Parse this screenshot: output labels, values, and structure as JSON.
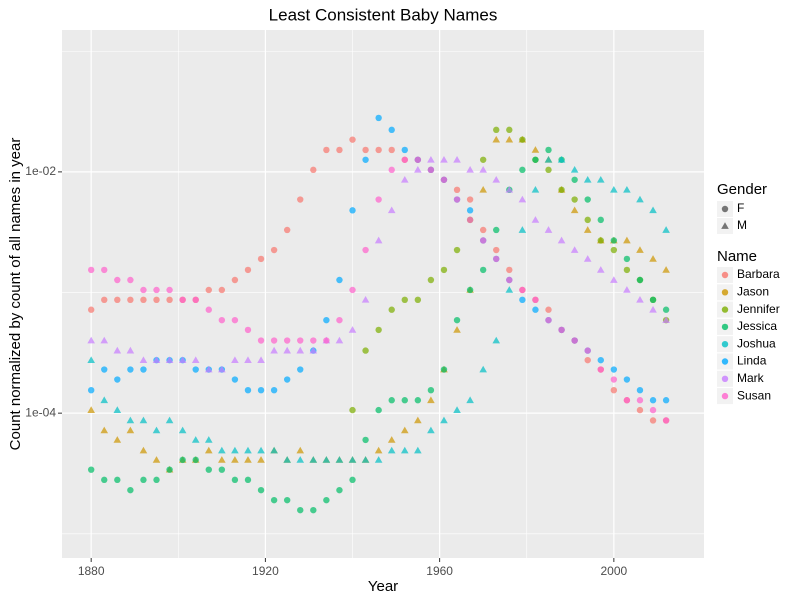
{
  "chart_data": {
    "type": "scatter",
    "title": "Least Consistent Baby Names",
    "x_label": "Year",
    "y_label": "Count normalized by count of all names in year",
    "log_y": true,
    "grid": true,
    "xlim": [
      1873.3,
      2020.7
    ],
    "ylim": [
      6.3e-06,
      0.15
    ],
    "xticks": [
      1880,
      1920,
      1960,
      2000
    ],
    "minor_xticks": [
      1900,
      1940,
      1980
    ],
    "yticks": [
      {
        "value": 0.0001,
        "label": "1e-04"
      },
      {
        "value": 0.01,
        "label": "1e-02"
      }
    ],
    "minor_yticks": [
      1e-05,
      0.001,
      0.1
    ],
    "gender_legend": {
      "title": "Gender",
      "items": [
        "F",
        "M"
      ]
    },
    "name_legend_title": "Name",
    "x": [
      1880,
      1883,
      1886,
      1889,
      1892,
      1895,
      1898,
      1901,
      1904,
      1907,
      1910,
      1913,
      1916,
      1919,
      1922,
      1925,
      1928,
      1931,
      1934,
      1937,
      1940,
      1943,
      1946,
      1949,
      1952,
      1955,
      1958,
      1961,
      1964,
      1967,
      1970,
      1973,
      1976,
      1979,
      1982,
      1985,
      1988,
      1991,
      1994,
      1997,
      2000,
      2003,
      2006,
      2009,
      2012
    ],
    "series": [
      {
        "name": "Barbara",
        "gender": "F",
        "color": "#F8766D",
        "values": [
          0.00072,
          0.00087,
          0.00087,
          0.00087,
          0.00087,
          0.00087,
          0.00087,
          0.00087,
          0.00087,
          0.00105,
          0.00105,
          0.00127,
          0.00154,
          0.0019,
          0.00225,
          0.0033,
          0.0059,
          0.0104,
          0.0152,
          0.0152,
          0.0185,
          0.0152,
          0.0152,
          0.0152,
          0.0126,
          0.0126,
          0.0104,
          0.0086,
          0.0071,
          0.0059,
          0.0033,
          0.00225,
          0.00154,
          0.00105,
          0.00087,
          0.00072,
          0.00049,
          0.0004,
          0.000275,
          0.00023,
          0.000155,
          0.000128,
          0.000106,
          8.7e-05,
          8.7e-05
        ]
      },
      {
        "name": "Jason",
        "gender": "M",
        "color": "#CD9600",
        "values": [
          0.000106,
          7.2e-05,
          6e-05,
          7.2e-05,
          4.9e-05,
          4.1e-05,
          3.4e-05,
          4.1e-05,
          4.1e-05,
          4.9e-05,
          4.1e-05,
          4.1e-05,
          4.1e-05,
          4.1e-05,
          4.9e-05,
          4.1e-05,
          4.9e-05,
          4.1e-05,
          4.1e-05,
          4.1e-05,
          4.1e-05,
          4.1e-05,
          4.9e-05,
          6e-05,
          7.2e-05,
          8.7e-05,
          0.000128,
          0.00023,
          0.00049,
          0.00105,
          0.0071,
          0.0185,
          0.0185,
          0.0185,
          0.0152,
          0.0126,
          0.0071,
          0.0048,
          0.0033,
          0.0027,
          0.0027,
          0.0027,
          0.00225,
          0.0019,
          0.00154
        ]
      },
      {
        "name": "Jennifer",
        "gender": "F",
        "color": "#7CAE00",
        "values": [
          null,
          null,
          null,
          null,
          null,
          null,
          null,
          null,
          null,
          null,
          null,
          null,
          null,
          null,
          null,
          null,
          null,
          null,
          null,
          null,
          0.000106,
          0.00033,
          0.00049,
          0.00072,
          0.00087,
          0.00087,
          0.00127,
          0.00154,
          0.00225,
          0.004,
          0.0126,
          0.0223,
          0.0223,
          0.0185,
          0.0126,
          0.0104,
          0.0071,
          0.0059,
          0.004,
          0.0027,
          0.00225,
          0.00154,
          0.00127,
          0.00087,
          0.00059
        ]
      },
      {
        "name": "Jessica",
        "gender": "F",
        "color": "#00BE67",
        "values": [
          3.4e-05,
          2.8e-05,
          2.8e-05,
          2.3e-05,
          2.8e-05,
          2.8e-05,
          3.4e-05,
          4.1e-05,
          4.1e-05,
          3.4e-05,
          3.4e-05,
          2.8e-05,
          2.8e-05,
          2.3e-05,
          1.9e-05,
          1.9e-05,
          1.57e-05,
          1.57e-05,
          1.9e-05,
          2.3e-05,
          2.8e-05,
          6e-05,
          0.000106,
          0.000128,
          0.000128,
          0.000128,
          0.000155,
          0.00023,
          0.00059,
          0.00105,
          0.00154,
          0.0033,
          0.0071,
          0.0104,
          0.0126,
          0.0152,
          0.0126,
          0.0086,
          0.0059,
          0.004,
          0.0027,
          0.0019,
          0.00127,
          0.00087,
          0.00072
        ]
      },
      {
        "name": "Joshua",
        "gender": "M",
        "color": "#00BFC4",
        "values": [
          0.000275,
          0.000128,
          0.000106,
          8.7e-05,
          8.7e-05,
          7.2e-05,
          8.7e-05,
          7.2e-05,
          6e-05,
          6e-05,
          4.9e-05,
          4.9e-05,
          4.9e-05,
          4.9e-05,
          4.9e-05,
          4.1e-05,
          4.1e-05,
          4.1e-05,
          4.1e-05,
          4.1e-05,
          4.1e-05,
          4.1e-05,
          4.1e-05,
          4.9e-05,
          4.9e-05,
          4.9e-05,
          7.2e-05,
          8.7e-05,
          0.000106,
          0.000128,
          0.00023,
          0.0004,
          0.00105,
          0.0033,
          0.0071,
          0.0126,
          0.0126,
          0.0104,
          0.0086,
          0.0086,
          0.0071,
          0.0071,
          0.0059,
          0.0048,
          0.0033
        ]
      },
      {
        "name": "Linda",
        "gender": "F",
        "color": "#00A9FF",
        "values": [
          0.000155,
          0.00023,
          0.00019,
          0.00023,
          0.00023,
          0.000275,
          0.000275,
          0.000275,
          0.00023,
          0.00023,
          0.00023,
          0.00019,
          0.000155,
          0.000155,
          0.000155,
          0.00019,
          0.00023,
          0.00033,
          0.00059,
          0.00127,
          0.0048,
          0.0126,
          0.028,
          0.0223,
          0.0152,
          0.0126,
          0.0104,
          0.0086,
          0.0059,
          0.0048,
          0.0027,
          0.0019,
          0.00127,
          0.00087,
          0.00072,
          0.00059,
          0.00049,
          0.0004,
          0.00033,
          0.000275,
          0.00023,
          0.00019,
          0.000155,
          0.000128,
          0.000128
        ]
      },
      {
        "name": "Mark",
        "gender": "M",
        "color": "#C77CFF",
        "values": [
          0.0004,
          0.0004,
          0.00033,
          0.00033,
          0.000275,
          0.000275,
          0.000275,
          0.000275,
          0.000275,
          0.00023,
          0.00023,
          0.000275,
          0.000275,
          0.000275,
          0.00033,
          0.00033,
          0.00033,
          0.00033,
          0.0004,
          0.0004,
          0.00049,
          0.00087,
          0.0027,
          0.0048,
          0.0086,
          0.0104,
          0.0126,
          0.0126,
          0.0126,
          0.0104,
          0.0104,
          0.0086,
          0.0071,
          0.0059,
          0.004,
          0.0033,
          0.0027,
          0.00225,
          0.0019,
          0.00154,
          0.00127,
          0.00105,
          0.00087,
          0.00072,
          0.00059
        ]
      },
      {
        "name": "Susan",
        "gender": "F",
        "color": "#FF61CC",
        "values": [
          0.00154,
          0.00154,
          0.00127,
          0.00127,
          0.00105,
          0.00105,
          0.00105,
          0.00087,
          0.00087,
          0.00072,
          0.00059,
          0.00059,
          0.00049,
          0.0004,
          0.0004,
          0.0004,
          0.0004,
          0.0004,
          0.0004,
          0.00059,
          0.00105,
          0.00225,
          0.0059,
          0.0104,
          0.0126,
          0.0126,
          0.0104,
          0.0086,
          0.0059,
          0.004,
          0.0027,
          0.0019,
          0.00127,
          0.00105,
          0.00087,
          0.00059,
          0.00049,
          0.0004,
          0.00033,
          0.00023,
          0.00019,
          0.000128,
          0.000128,
          0.000106,
          8.7e-05
        ]
      }
    ]
  }
}
